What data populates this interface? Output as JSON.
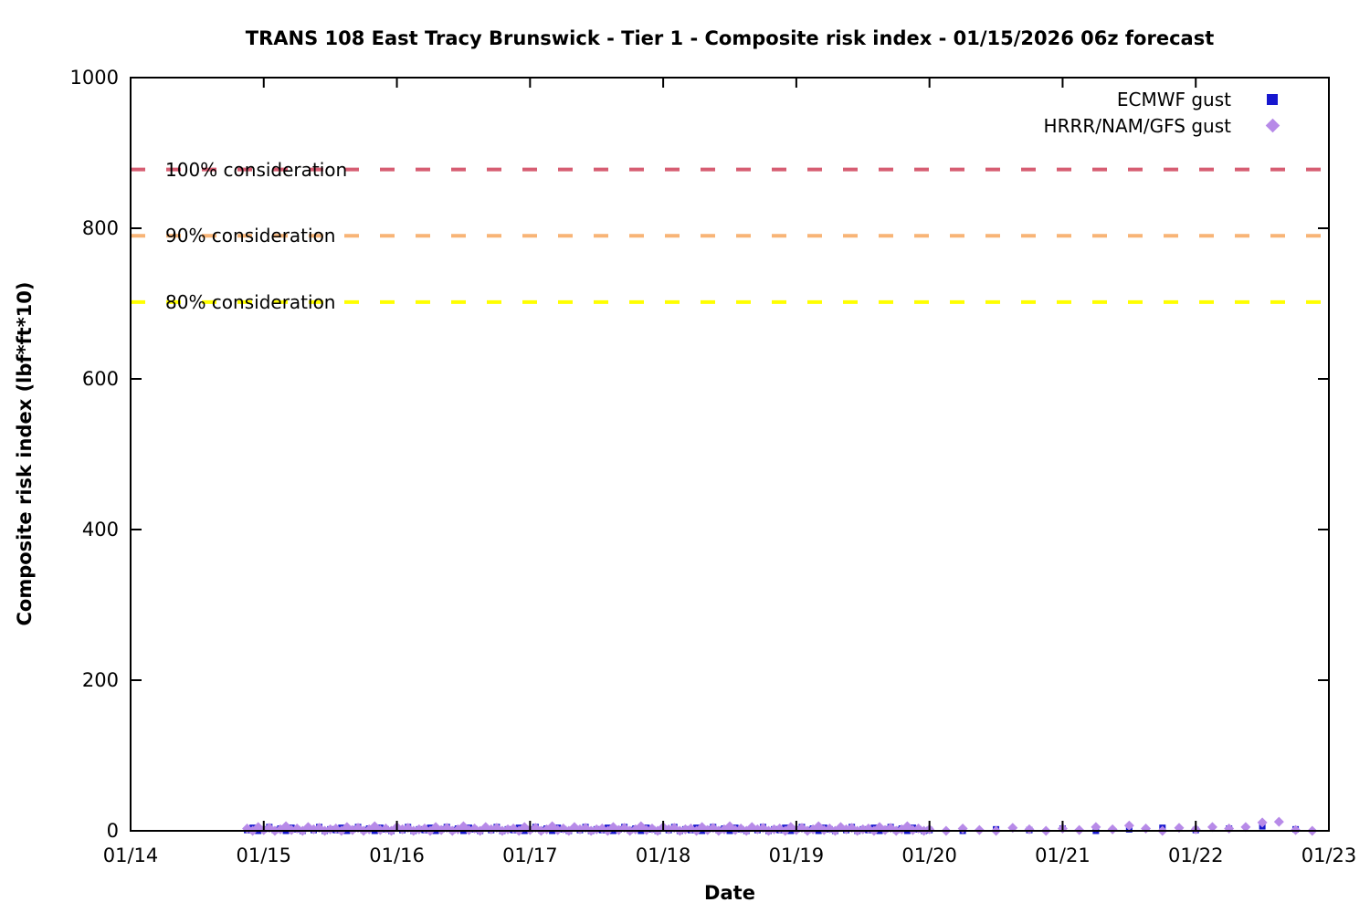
{
  "title": "TRANS 108 East Tracy Brunswick - Tier 1 - Composite risk index - 01/15/2026 06z forecast",
  "chart_data": {
    "type": "scatter",
    "title": "TRANS 108 East Tracy Brunswick - Tier 1 - Composite risk index - 01/15/2026 06z forecast",
    "xlabel": "Date",
    "ylabel": "Composite risk index (lbf*ft*10)",
    "ylim": [
      0,
      1000
    ],
    "x_range_days": [
      0,
      9
    ],
    "grid": false,
    "legend_position": "top-right",
    "x_tick_labels": [
      "01/14",
      "01/15",
      "01/16",
      "01/17",
      "01/18",
      "01/19",
      "01/20",
      "01/21",
      "01/22",
      "01/23"
    ],
    "y_tick_labels": [
      0,
      200,
      400,
      600,
      800,
      1000
    ],
    "thresholds": [
      {
        "label": "100% consideration",
        "value": 878,
        "color": "#d65d72"
      },
      {
        "label": "90% consideration",
        "value": 790,
        "color": "#f8b476"
      },
      {
        "label": "80% consideration",
        "value": 702,
        "color": "#ffff00"
      }
    ],
    "legend": [
      {
        "label": "ECMWF gust",
        "marker": "square",
        "color": "#1717cf"
      },
      {
        "label": "HRRR/NAM/GFS gust",
        "marker": "diamond",
        "color": "#b78ae8"
      }
    ],
    "series": [
      {
        "name": "ECMWF gust",
        "marker": "square",
        "color": "#1717cf",
        "segments": [
          {
            "start_day": 0.875,
            "step_days": 0.0416667,
            "values": [
              1,
              4,
              0,
              2,
              5,
              1,
              3,
              0,
              4,
              2,
              0,
              3,
              1,
              5,
              0,
              2,
              1,
              4,
              0,
              2,
              5,
              1,
              3,
              0,
              4,
              2,
              0,
              3,
              1,
              5,
              0,
              2,
              1,
              4,
              0,
              2,
              5,
              1,
              3,
              0,
              4,
              2,
              0,
              3,
              1,
              5,
              0,
              2,
              1,
              4,
              0,
              2,
              5,
              1,
              3,
              0,
              4,
              2,
              0,
              3,
              1,
              5,
              0,
              2,
              1,
              4,
              0,
              2,
              5,
              1,
              3,
              0,
              4,
              2,
              0,
              3,
              1,
              5,
              0,
              2,
              1,
              4,
              0,
              2,
              5,
              1,
              3,
              0,
              4,
              2,
              0,
              3,
              1,
              5,
              0,
              2,
              1,
              4,
              0,
              2,
              5,
              1,
              3,
              0,
              4,
              2,
              0,
              3,
              1,
              5,
              0,
              2,
              1,
              4,
              0,
              2,
              5,
              1,
              3,
              0,
              4,
              2,
              0
            ]
          },
          {
            "start_day": 6.0,
            "step_days": 0.25,
            "values": [
              1,
              0,
              2,
              1,
              3,
              0,
              2,
              4,
              1,
              3,
              6,
              2
            ]
          }
        ]
      },
      {
        "name": "HRRR/NAM/GFS gust",
        "marker": "diamond",
        "color": "#b78ae8",
        "segments": [
          {
            "start_day": 0.875,
            "step_days": 0.0416667,
            "values": [
              3,
              0,
              5,
              1,
              4,
              0,
              2,
              6,
              1,
              3,
              0,
              5,
              2,
              4,
              0,
              2,
              3,
              0,
              5,
              1,
              4,
              0,
              2,
              6,
              1,
              3,
              0,
              5,
              2,
              4,
              0,
              2,
              3,
              0,
              5,
              1,
              4,
              0,
              2,
              6,
              1,
              3,
              0,
              5,
              2,
              4,
              0,
              2,
              3,
              0,
              5,
              1,
              4,
              0,
              2,
              6,
              1,
              3,
              0,
              5,
              2,
              4,
              0,
              2,
              3,
              0,
              5,
              1,
              4,
              0,
              2,
              6,
              1,
              3,
              0,
              5,
              2,
              4,
              0,
              2,
              3,
              0,
              5,
              1,
              4,
              0,
              2,
              6,
              1,
              3,
              0,
              5,
              2,
              4,
              0,
              2,
              3,
              0,
              5,
              1,
              4,
              0,
              2,
              6,
              1,
              3,
              0,
              5,
              2,
              4,
              0,
              2,
              3,
              0,
              5,
              1,
              4,
              0,
              2,
              6,
              1,
              3,
              0
            ]
          },
          {
            "start_day": 6.0,
            "step_days": 0.125,
            "values": [
              2,
              0,
              3,
              1,
              0,
              4,
              2,
              0,
              3,
              1,
              5,
              2,
              7,
              3,
              0,
              4,
              2,
              5,
              3,
              5,
              11,
              12,
              1,
              0
            ]
          }
        ]
      }
    ]
  }
}
